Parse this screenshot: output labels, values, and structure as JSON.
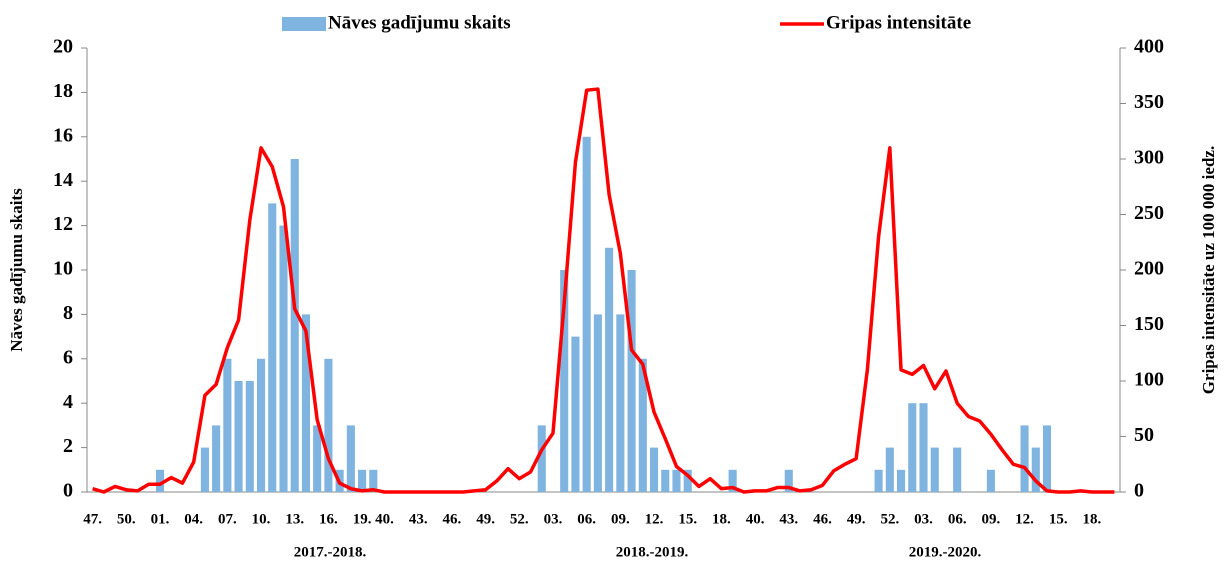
{
  "chart_data": {
    "type": "bar",
    "ylabel": "Nāves gadījumu skaits",
    "y2label": "Gripas intensitāte uz 100 000 iedz.",
    "categories": [
      "47.",
      null,
      null,
      "50.",
      null,
      null,
      "01.",
      null,
      null,
      "04.",
      null,
      null,
      "07.",
      null,
      null,
      "10.",
      null,
      null,
      "13.",
      null,
      null,
      "16.",
      null,
      null,
      "19.",
      null,
      "40.",
      null,
      null,
      "43.",
      null,
      null,
      "46.",
      null,
      null,
      "49.",
      null,
      null,
      "52.",
      null,
      null,
      "03.",
      null,
      null,
      "06.",
      null,
      null,
      "09.",
      null,
      null,
      "12.",
      null,
      null,
      "15.",
      null,
      null,
      "18.",
      null,
      null,
      "40.",
      null,
      null,
      "43.",
      null,
      null,
      "46.",
      null,
      null,
      "49.",
      null,
      null,
      "52.",
      null,
      null,
      "03.",
      null,
      null,
      "06.",
      null,
      null,
      "09.",
      null,
      null,
      "12.",
      null,
      null,
      "15.",
      null,
      null,
      "18.",
      null,
      null
    ],
    "groups": [
      "2017.-2018.",
      "2018.-2019.",
      "2019.-2020."
    ],
    "series": [
      {
        "name": "Nāves gadījumu skaits",
        "type": "bar",
        "color": "#7fb3e0",
        "values": [
          0,
          0,
          0,
          0,
          0,
          0,
          1,
          0,
          0,
          0,
          2,
          3,
          6,
          5,
          5,
          6,
          13,
          12,
          15,
          8,
          3,
          6,
          1,
          3,
          1,
          1,
          0,
          0,
          0,
          0,
          0,
          0,
          0,
          0,
          0,
          0,
          0,
          0,
          0,
          0,
          3,
          0,
          10,
          7,
          16,
          8,
          11,
          8,
          10,
          6,
          2,
          1,
          1,
          1,
          0,
          0,
          0,
          1,
          0,
          0,
          0,
          0,
          1,
          0,
          0,
          0,
          0,
          0,
          0,
          0,
          1,
          2,
          1,
          4,
          4,
          2,
          0,
          2,
          0,
          0,
          1,
          0,
          0,
          3,
          2,
          3,
          0,
          0,
          0,
          0,
          0,
          0
        ]
      },
      {
        "name": "Gripas intensitāte",
        "type": "line",
        "color": "#ff0000",
        "axis": "y2",
        "values": [
          3,
          0,
          5,
          2,
          1,
          7,
          7,
          13,
          8,
          27,
          87,
          97,
          130,
          155,
          245,
          310,
          293,
          257,
          165,
          145,
          65,
          30,
          8,
          3,
          1,
          2,
          0,
          0,
          0,
          0,
          0,
          0,
          0,
          0,
          1,
          2,
          10,
          21,
          12,
          18,
          38,
          53,
          170,
          297,
          362,
          363,
          268,
          215,
          128,
          115,
          72,
          48,
          23,
          15,
          5,
          12,
          3,
          4,
          0,
          1,
          1,
          4,
          4,
          1,
          2,
          6,
          19,
          25,
          30,
          110,
          230,
          310,
          110,
          106,
          114,
          93,
          109,
          80,
          68,
          64,
          52,
          38,
          25,
          22,
          10,
          1,
          0,
          0,
          1,
          0,
          0,
          0
        ]
      }
    ],
    "ylim": [
      0,
      20
    ],
    "yticks": [
      0,
      2,
      4,
      6,
      8,
      10,
      12,
      14,
      16,
      18,
      20
    ],
    "y2lim": [
      0,
      400
    ],
    "y2ticks": [
      0,
      50,
      100,
      150,
      200,
      250,
      300,
      350,
      400
    ],
    "legend": "top"
  }
}
